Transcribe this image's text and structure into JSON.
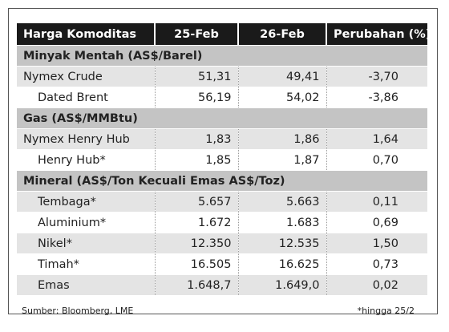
{
  "header": [
    "Harga Komoditas",
    "25-Feb",
    "26-Feb",
    "Perubahan (%)"
  ],
  "sections": [
    {
      "title": "Minyak Mentah (AS$/Barel)",
      "rows": [
        [
          "Nymex Crude",
          "51,31",
          "49,41",
          "-3,70"
        ],
        [
          "Dated Brent",
          "56,19",
          "54,02",
          "-3,86"
        ]
      ]
    },
    {
      "title": "Gas (AS$/MMBtu)",
      "rows": [
        [
          "Nymex Henry Hub",
          "1,83",
          "1,86",
          "1,64"
        ],
        [
          "Henry Hub*",
          "1,85",
          "1,87",
          "0,70"
        ]
      ]
    },
    {
      "title": "Mineral (AS$/Ton Kecuali Emas AS$/Toz)",
      "rows": [
        [
          "Tembaga*",
          "5.657",
          "5.663",
          "0,11"
        ],
        [
          "Aluminium*",
          "1.672",
          "1.683",
          "0,69"
        ],
        [
          "Nikel*",
          "12.350",
          "12.535",
          "1,50"
        ],
        [
          "Timah*",
          "16.505",
          "16.625",
          "0,73"
        ],
        [
          "Emas",
          "1.648,7",
          "1.649,0",
          "0,02"
        ]
      ]
    }
  ],
  "footer": {
    "source": "Sumber: Bloomberg, LME",
    "note": "*hingga 25/2"
  }
}
